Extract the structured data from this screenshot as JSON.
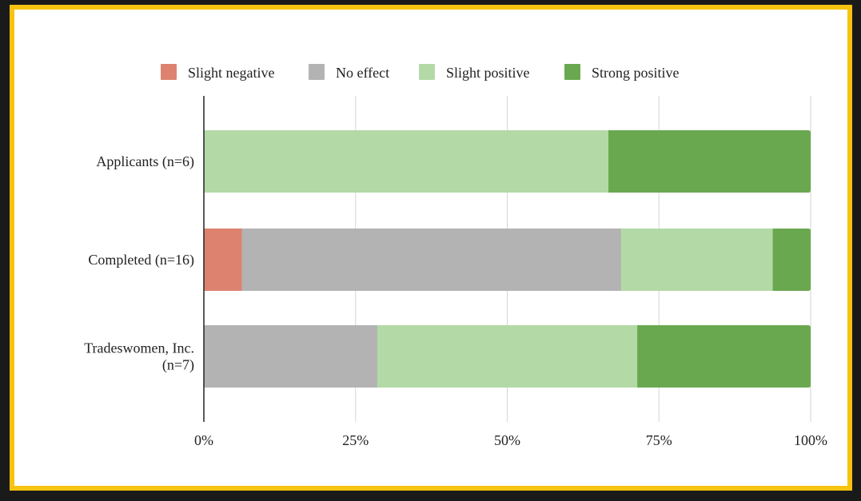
{
  "colors": {
    "frame_border": "#f6c30f",
    "background": "#1a1a1a"
  },
  "chart_data": {
    "type": "bar",
    "orientation": "horizontal",
    "stacked": true,
    "categories": [
      [
        "Applicants (n=6)"
      ],
      [
        "Completed (n=16)"
      ],
      [
        "Tradeswomen, Inc.",
        "(n=7)"
      ]
    ],
    "series": [
      {
        "name": "Slight negative",
        "color": "#dd826f",
        "values": [
          0,
          0.0625,
          0
        ]
      },
      {
        "name": "No effect",
        "color": "#b3b3b3",
        "values": [
          0,
          0.625,
          0.2857
        ]
      },
      {
        "name": "Slight positive",
        "color": "#b3d9a7",
        "values": [
          0.6667,
          0.25,
          0.4286
        ]
      },
      {
        "name": "Strong positive",
        "color": "#6aa84f",
        "values": [
          0.3333,
          0.0625,
          0.2857
        ]
      }
    ],
    "xlim": [
      0,
      1
    ],
    "ticks": [
      0,
      0.25,
      0.5,
      0.75,
      1
    ],
    "tick_labels": [
      "0%",
      "25%",
      "50%",
      "75%",
      "100%"
    ],
    "grid": true,
    "legend_position": "top-center"
  }
}
